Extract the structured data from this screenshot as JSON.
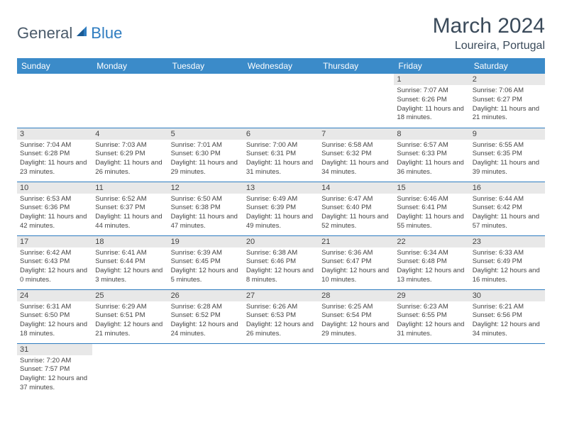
{
  "logo": {
    "general": "General",
    "blue": "Blue"
  },
  "title": "March 2024",
  "location": "Loureira, Portugal",
  "colors": {
    "header_bg": "#3b8bc9",
    "header_text": "#ffffff",
    "daynum_bg": "#e8e8e8",
    "border": "#2e7cc0",
    "text": "#444444",
    "logo_blue": "#2e7cc0",
    "logo_gray": "#4a5a6a"
  },
  "weekdays": [
    "Sunday",
    "Monday",
    "Tuesday",
    "Wednesday",
    "Thursday",
    "Friday",
    "Saturday"
  ],
  "weeks": [
    [
      null,
      null,
      null,
      null,
      null,
      {
        "n": "1",
        "sr": "Sunrise: 7:07 AM",
        "ss": "Sunset: 6:26 PM",
        "dl": "Daylight: 11 hours and 18 minutes."
      },
      {
        "n": "2",
        "sr": "Sunrise: 7:06 AM",
        "ss": "Sunset: 6:27 PM",
        "dl": "Daylight: 11 hours and 21 minutes."
      }
    ],
    [
      {
        "n": "3",
        "sr": "Sunrise: 7:04 AM",
        "ss": "Sunset: 6:28 PM",
        "dl": "Daylight: 11 hours and 23 minutes."
      },
      {
        "n": "4",
        "sr": "Sunrise: 7:03 AM",
        "ss": "Sunset: 6:29 PM",
        "dl": "Daylight: 11 hours and 26 minutes."
      },
      {
        "n": "5",
        "sr": "Sunrise: 7:01 AM",
        "ss": "Sunset: 6:30 PM",
        "dl": "Daylight: 11 hours and 29 minutes."
      },
      {
        "n": "6",
        "sr": "Sunrise: 7:00 AM",
        "ss": "Sunset: 6:31 PM",
        "dl": "Daylight: 11 hours and 31 minutes."
      },
      {
        "n": "7",
        "sr": "Sunrise: 6:58 AM",
        "ss": "Sunset: 6:32 PM",
        "dl": "Daylight: 11 hours and 34 minutes."
      },
      {
        "n": "8",
        "sr": "Sunrise: 6:57 AM",
        "ss": "Sunset: 6:33 PM",
        "dl": "Daylight: 11 hours and 36 minutes."
      },
      {
        "n": "9",
        "sr": "Sunrise: 6:55 AM",
        "ss": "Sunset: 6:35 PM",
        "dl": "Daylight: 11 hours and 39 minutes."
      }
    ],
    [
      {
        "n": "10",
        "sr": "Sunrise: 6:53 AM",
        "ss": "Sunset: 6:36 PM",
        "dl": "Daylight: 11 hours and 42 minutes."
      },
      {
        "n": "11",
        "sr": "Sunrise: 6:52 AM",
        "ss": "Sunset: 6:37 PM",
        "dl": "Daylight: 11 hours and 44 minutes."
      },
      {
        "n": "12",
        "sr": "Sunrise: 6:50 AM",
        "ss": "Sunset: 6:38 PM",
        "dl": "Daylight: 11 hours and 47 minutes."
      },
      {
        "n": "13",
        "sr": "Sunrise: 6:49 AM",
        "ss": "Sunset: 6:39 PM",
        "dl": "Daylight: 11 hours and 49 minutes."
      },
      {
        "n": "14",
        "sr": "Sunrise: 6:47 AM",
        "ss": "Sunset: 6:40 PM",
        "dl": "Daylight: 11 hours and 52 minutes."
      },
      {
        "n": "15",
        "sr": "Sunrise: 6:46 AM",
        "ss": "Sunset: 6:41 PM",
        "dl": "Daylight: 11 hours and 55 minutes."
      },
      {
        "n": "16",
        "sr": "Sunrise: 6:44 AM",
        "ss": "Sunset: 6:42 PM",
        "dl": "Daylight: 11 hours and 57 minutes."
      }
    ],
    [
      {
        "n": "17",
        "sr": "Sunrise: 6:42 AM",
        "ss": "Sunset: 6:43 PM",
        "dl": "Daylight: 12 hours and 0 minutes."
      },
      {
        "n": "18",
        "sr": "Sunrise: 6:41 AM",
        "ss": "Sunset: 6:44 PM",
        "dl": "Daylight: 12 hours and 3 minutes."
      },
      {
        "n": "19",
        "sr": "Sunrise: 6:39 AM",
        "ss": "Sunset: 6:45 PM",
        "dl": "Daylight: 12 hours and 5 minutes."
      },
      {
        "n": "20",
        "sr": "Sunrise: 6:38 AM",
        "ss": "Sunset: 6:46 PM",
        "dl": "Daylight: 12 hours and 8 minutes."
      },
      {
        "n": "21",
        "sr": "Sunrise: 6:36 AM",
        "ss": "Sunset: 6:47 PM",
        "dl": "Daylight: 12 hours and 10 minutes."
      },
      {
        "n": "22",
        "sr": "Sunrise: 6:34 AM",
        "ss": "Sunset: 6:48 PM",
        "dl": "Daylight: 12 hours and 13 minutes."
      },
      {
        "n": "23",
        "sr": "Sunrise: 6:33 AM",
        "ss": "Sunset: 6:49 PM",
        "dl": "Daylight: 12 hours and 16 minutes."
      }
    ],
    [
      {
        "n": "24",
        "sr": "Sunrise: 6:31 AM",
        "ss": "Sunset: 6:50 PM",
        "dl": "Daylight: 12 hours and 18 minutes."
      },
      {
        "n": "25",
        "sr": "Sunrise: 6:29 AM",
        "ss": "Sunset: 6:51 PM",
        "dl": "Daylight: 12 hours and 21 minutes."
      },
      {
        "n": "26",
        "sr": "Sunrise: 6:28 AM",
        "ss": "Sunset: 6:52 PM",
        "dl": "Daylight: 12 hours and 24 minutes."
      },
      {
        "n": "27",
        "sr": "Sunrise: 6:26 AM",
        "ss": "Sunset: 6:53 PM",
        "dl": "Daylight: 12 hours and 26 minutes."
      },
      {
        "n": "28",
        "sr": "Sunrise: 6:25 AM",
        "ss": "Sunset: 6:54 PM",
        "dl": "Daylight: 12 hours and 29 minutes."
      },
      {
        "n": "29",
        "sr": "Sunrise: 6:23 AM",
        "ss": "Sunset: 6:55 PM",
        "dl": "Daylight: 12 hours and 31 minutes."
      },
      {
        "n": "30",
        "sr": "Sunrise: 6:21 AM",
        "ss": "Sunset: 6:56 PM",
        "dl": "Daylight: 12 hours and 34 minutes."
      }
    ],
    [
      {
        "n": "31",
        "sr": "Sunrise: 7:20 AM",
        "ss": "Sunset: 7:57 PM",
        "dl": "Daylight: 12 hours and 37 minutes."
      },
      null,
      null,
      null,
      null,
      null,
      null
    ]
  ]
}
